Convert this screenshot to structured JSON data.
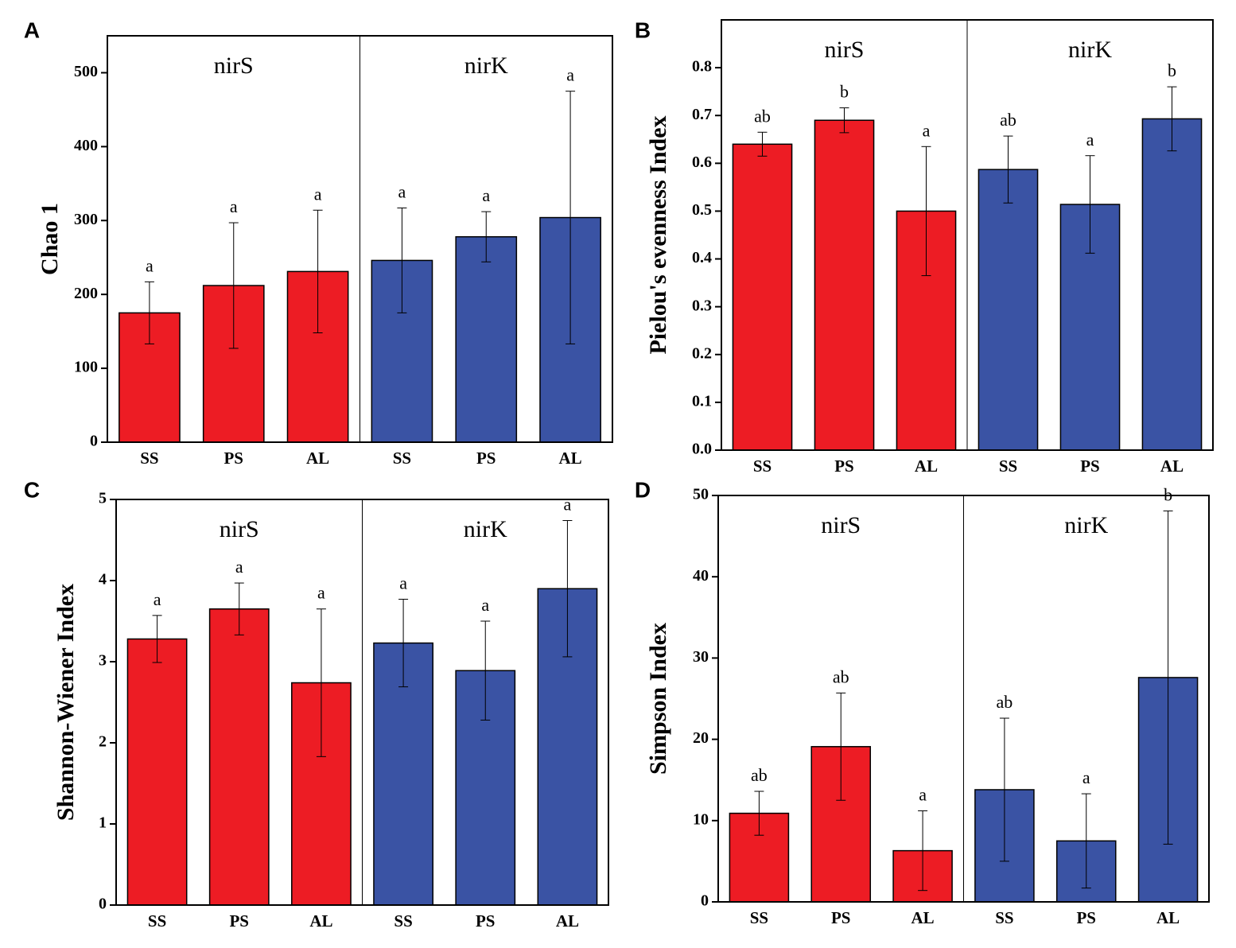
{
  "chart_data": [
    {
      "type": "bar",
      "panel": "A",
      "ylabel": "Chao 1",
      "groups": [
        "nirS",
        "nirK"
      ],
      "categories": [
        "SS",
        "PS",
        "AL",
        "SS",
        "PS",
        "AL"
      ],
      "values": [
        175,
        212,
        231,
        246,
        278,
        304
      ],
      "errors": [
        42,
        85,
        83,
        71,
        34,
        171
      ],
      "letters": [
        "a",
        "a",
        "a",
        "a",
        "a",
        "a"
      ],
      "colors": [
        "#ed1c24",
        "#ed1c24",
        "#ed1c24",
        "#3a53a4",
        "#3a53a4",
        "#3a53a4"
      ],
      "ylim": [
        0,
        550
      ],
      "yticks": [
        0,
        100,
        200,
        300,
        400,
        500
      ]
    },
    {
      "type": "bar",
      "panel": "B",
      "ylabel": "Pielou's evenness Index",
      "groups": [
        "nirS",
        "nirK"
      ],
      "categories": [
        "SS",
        "PS",
        "AL",
        "SS",
        "PS",
        "AL"
      ],
      "values": [
        0.64,
        0.69,
        0.5,
        0.587,
        0.514,
        0.693
      ],
      "errors": [
        0.025,
        0.026,
        0.135,
        0.07,
        0.102,
        0.067
      ],
      "letters": [
        "ab",
        "b",
        "a",
        "ab",
        "a",
        "b"
      ],
      "colors": [
        "#ed1c24",
        "#ed1c24",
        "#ed1c24",
        "#3a53a4",
        "#3a53a4",
        "#3a53a4"
      ],
      "ylim": [
        0,
        0.9
      ],
      "yticks": [
        {
          "value": 0,
          "label": "0.0"
        },
        0.1,
        0.2,
        0.3,
        0.4,
        0.5,
        0.6,
        0.7,
        0.8
      ]
    },
    {
      "type": "bar",
      "panel": "C",
      "ylabel": "Shannon-Wiener Index",
      "groups": [
        "nirS",
        "nirK"
      ],
      "categories": [
        "SS",
        "PS",
        "AL",
        "SS",
        "PS",
        "AL"
      ],
      "values": [
        3.28,
        3.65,
        2.74,
        3.23,
        2.89,
        3.9
      ],
      "errors": [
        0.29,
        0.32,
        0.91,
        0.54,
        0.61,
        0.84
      ],
      "letters": [
        "a",
        "a",
        "a",
        "a",
        "a",
        "a"
      ],
      "colors": [
        "#ed1c24",
        "#ed1c24",
        "#ed1c24",
        "#3a53a4",
        "#3a53a4",
        "#3a53a4"
      ],
      "ylim": [
        0,
        5
      ],
      "yticks": [
        0,
        1,
        2,
        3,
        4,
        5
      ]
    },
    {
      "type": "bar",
      "panel": "D",
      "ylabel": "Simpson Index",
      "groups": [
        "nirS",
        "nirK"
      ],
      "categories": [
        "SS",
        "PS",
        "AL",
        "SS",
        "PS",
        "AL"
      ],
      "values": [
        10.9,
        19.1,
        6.3,
        13.8,
        7.5,
        27.6
      ],
      "errors": [
        2.7,
        6.6,
        4.9,
        8.8,
        5.8,
        20.5
      ],
      "letters": [
        "ab",
        "ab",
        "a",
        "ab",
        "a",
        "b"
      ],
      "colors": [
        "#ed1c24",
        "#ed1c24",
        "#ed1c24",
        "#3a53a4",
        "#3a53a4",
        "#3a53a4"
      ],
      "ylim": [
        0,
        50
      ],
      "yticks": [
        0,
        10,
        20,
        30,
        40,
        50
      ]
    }
  ]
}
